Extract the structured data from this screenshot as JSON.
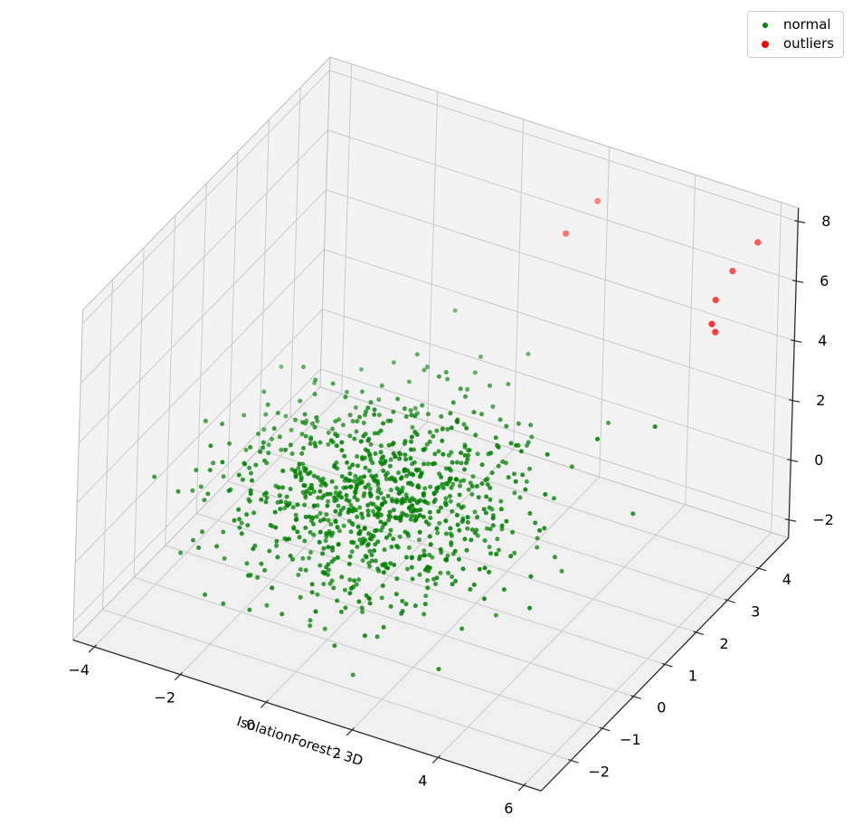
{
  "figure": {
    "background": "#ffffff"
  },
  "legend": {
    "position": "upper right",
    "items": [
      {
        "label": "normal",
        "color": "#008000",
        "marker_size": 6
      },
      {
        "label": "outliers",
        "color": "#ff0000",
        "marker_size": 8
      }
    ]
  },
  "chart_data": {
    "type": "scatter",
    "projection": "3d",
    "title": "",
    "xlabel": "IsolationForest - 3D",
    "ylabel": "",
    "zlabel": "",
    "x_ticks": [
      -4,
      -2,
      0,
      2,
      4,
      6
    ],
    "y_ticks": [
      -2,
      -1,
      0,
      1,
      2,
      3,
      4
    ],
    "z_ticks": [
      -2,
      0,
      2,
      4,
      6,
      8
    ],
    "xlim": [
      -4.5,
      6.4
    ],
    "ylim": [
      -2.95,
      4.95
    ],
    "zlim": [
      -2.6,
      8.45
    ],
    "view": {
      "elev": 30,
      "azim": -60
    },
    "grid": true,
    "legend_position": "upper right",
    "pane_color": "#f3f3f3",
    "floor_color": "#f0f0f0",
    "grid_color": "#c9c9c9",
    "box_edge_color": "#bdbdbd",
    "axis_line_color": "#2b2b2b",
    "series": [
      {
        "name": "normal",
        "color": "#008000",
        "marker_radius": 2.5,
        "distribution": {
          "kind": "gaussian-cluster (approx. 950 unlabeled points, values not individually readable)",
          "count": 950,
          "center": [
            0.2,
            0.3,
            0.8
          ],
          "std": [
            1.55,
            1.25,
            1.0
          ],
          "seed": 11
        }
      },
      {
        "name": "outliers",
        "color": "#ff0000",
        "marker_radius": 3.6,
        "points": [
          [
            2.5,
            3.9,
            8.0
          ],
          [
            2.0,
            3.6,
            7.0
          ],
          [
            5.8,
            4.5,
            7.5
          ],
          [
            5.1,
            4.7,
            6.0
          ],
          [
            4.8,
            4.6,
            5.0
          ],
          [
            4.8,
            4.5,
            4.3
          ],
          [
            4.85,
            4.55,
            4.0
          ]
        ]
      }
    ]
  }
}
